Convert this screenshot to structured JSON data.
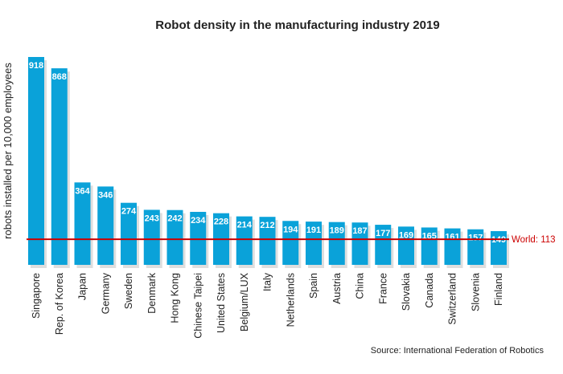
{
  "chart_data": {
    "type": "bar",
    "title": "Robot density in the manufacturing industry 2019",
    "xlabel": "",
    "ylabel": "robots installed per 10,000 employees",
    "categories": [
      "Singapore",
      "Rep. of Korea",
      "Japan",
      "Germany",
      "Sweden",
      "Denmark",
      "Hong Kong",
      "Chinese Taipei",
      "United States",
      "Belgium/LUX",
      "Italy",
      "Netherlands",
      "Spain",
      "Austria",
      "China",
      "France",
      "Slovakia",
      "Canada",
      "Switzerland",
      "Slovenia",
      "Finland"
    ],
    "values": [
      918,
      868,
      364,
      346,
      274,
      243,
      242,
      234,
      228,
      214,
      212,
      194,
      191,
      189,
      187,
      177,
      169,
      165,
      161,
      157,
      149
    ],
    "ylim": [
      0,
      918
    ],
    "grid": false,
    "reference_line": {
      "label": "World: 113",
      "value": 113,
      "color": "#cc0000"
    },
    "bar_color": "#0aa2d9",
    "source": "Source: International Federation of Robotics"
  }
}
